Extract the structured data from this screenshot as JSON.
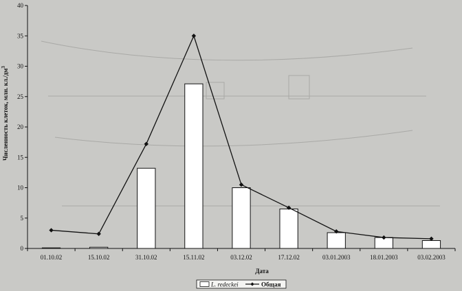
{
  "chart_data": {
    "type": "bar",
    "title": "",
    "xlabel": "Дата",
    "ylabel": "Численность клеток, млн. кл./дм",
    "ylabel_superscript": "3",
    "ylim": [
      0,
      40
    ],
    "yticks": [
      0,
      5,
      10,
      15,
      20,
      25,
      30,
      35,
      40
    ],
    "grid": false,
    "legend_position": "bottom-center",
    "categories": [
      "01.10.02",
      "15.10.02",
      "31.10.02",
      "15.11.02",
      "03.12.02",
      "17.12.02",
      "03.01.2003",
      "18.01.2003",
      "03.02.2003"
    ],
    "series": [
      {
        "name": "L. redeckei",
        "type": "bar",
        "color": "#ffffff",
        "values": [
          0.1,
          0.2,
          13.2,
          27.1,
          10.0,
          6.5,
          2.6,
          1.8,
          1.3
        ]
      },
      {
        "name": "Общая",
        "type": "line",
        "color": "#111111",
        "marker": "diamond",
        "values": [
          3.0,
          2.4,
          17.2,
          35.0,
          10.5,
          6.7,
          2.8,
          1.8,
          1.6
        ]
      }
    ]
  }
}
